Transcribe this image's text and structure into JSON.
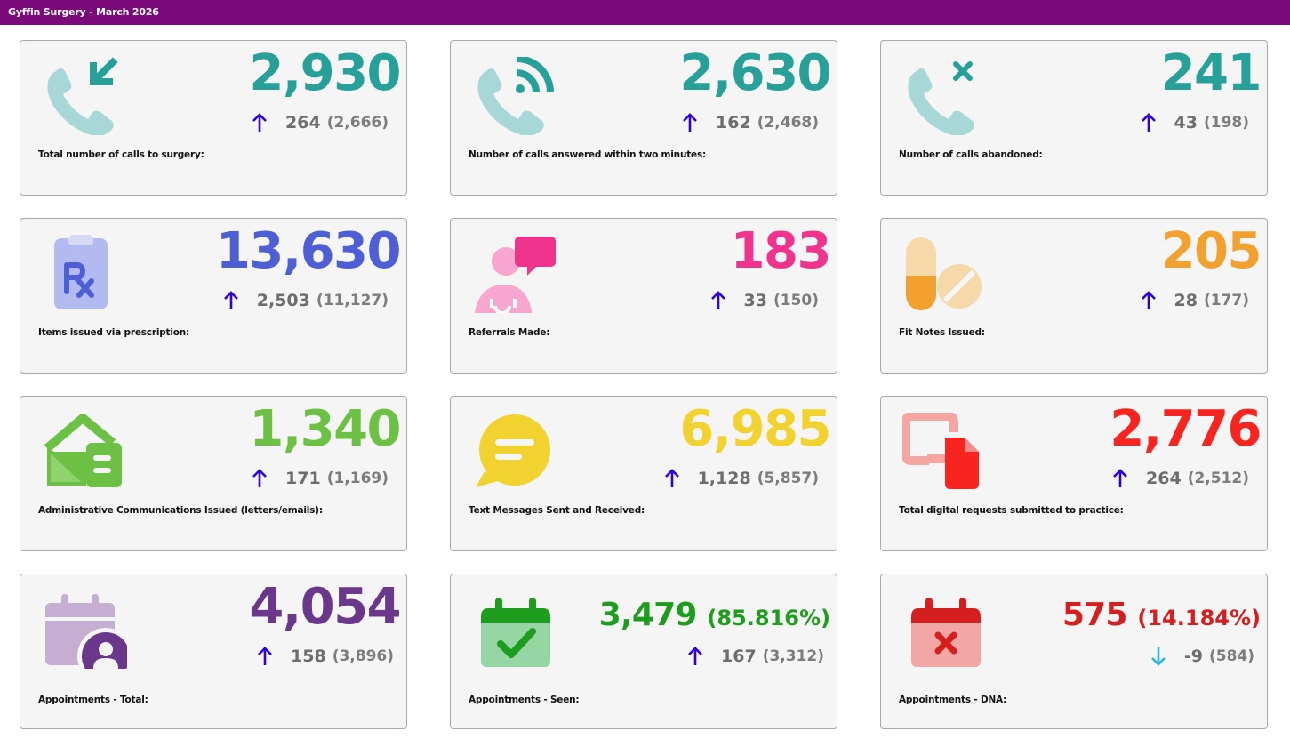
{
  "page_title": "Gyffin Surgery - March 2026",
  "colors": {
    "header": "#7b0a7a",
    "arrow_up": "#3000d8",
    "arrow_down": "#29b6e8"
  },
  "cards": [
    {
      "label": "Total number of calls to surgery:",
      "value": "2,930",
      "delta": "264",
      "previous": "(2,666)",
      "color": "#27a09a",
      "direction": "up",
      "icon": "incoming-call-icon"
    },
    {
      "label": "Number of calls answered within two minutes:",
      "value": "2,630",
      "delta": "162",
      "previous": "(2,468)",
      "color": "#27a09a",
      "direction": "up",
      "icon": "call-answered-icon"
    },
    {
      "label": "Number of calls abandoned:",
      "value": "241",
      "delta": "43",
      "previous": "(198)",
      "color": "#27a09a",
      "direction": "up",
      "icon": "missed-call-icon"
    },
    {
      "label": "Items issued via prescription:",
      "value": "13,630",
      "delta": "2,503",
      "previous": "(11,127)",
      "color": "#4e5fd6",
      "direction": "up",
      "icon": "prescription-clipboard-icon"
    },
    {
      "label": "Referrals Made:",
      "value": "183",
      "delta": "33",
      "previous": "(150)",
      "color": "#f0348e",
      "direction": "up",
      "icon": "doctor-chat-icon"
    },
    {
      "label": "Fit Notes Issued:",
      "value": "205",
      "delta": "28",
      "previous": "(177)",
      "color": "#f2a12f",
      "direction": "up",
      "icon": "pills-icon"
    },
    {
      "label": "Administrative Communications Issued (letters/emails):",
      "value": "1,340",
      "delta": "171",
      "previous": "(1,169)",
      "color": "#6cc043",
      "direction": "up",
      "icon": "house-letter-icon"
    },
    {
      "label": "Text Messages Sent and Received:",
      "value": "6,985",
      "delta": "1,128",
      "previous": "(5,857)",
      "color": "#f2d22e",
      "direction": "up",
      "icon": "speech-bubble-icon"
    },
    {
      "label": "Total digital requests submitted to practice:",
      "value": "2,776",
      "delta": "264",
      "previous": "(2,512)",
      "color": "#f7241f",
      "direction": "up",
      "icon": "digital-request-icon"
    },
    {
      "label": "Appointments - Total:",
      "value": "4,054",
      "delta": "158",
      "previous": "(3,896)",
      "color": "#6b378a",
      "direction": "up",
      "icon": "calendar-user-icon"
    },
    {
      "label": "Appointments - Seen:",
      "value": "3,479",
      "percent": "(85.816%)",
      "delta": "167",
      "previous": "(3,312)",
      "color": "#1e9c1e",
      "direction": "up",
      "icon": "calendar-check-icon"
    },
    {
      "label": "Appointments - DNA:",
      "value": "575",
      "percent": "(14.184%)",
      "delta": "-9",
      "previous": "(584)",
      "color": "#d51f1f",
      "direction": "down",
      "icon": "calendar-cross-icon"
    }
  ]
}
